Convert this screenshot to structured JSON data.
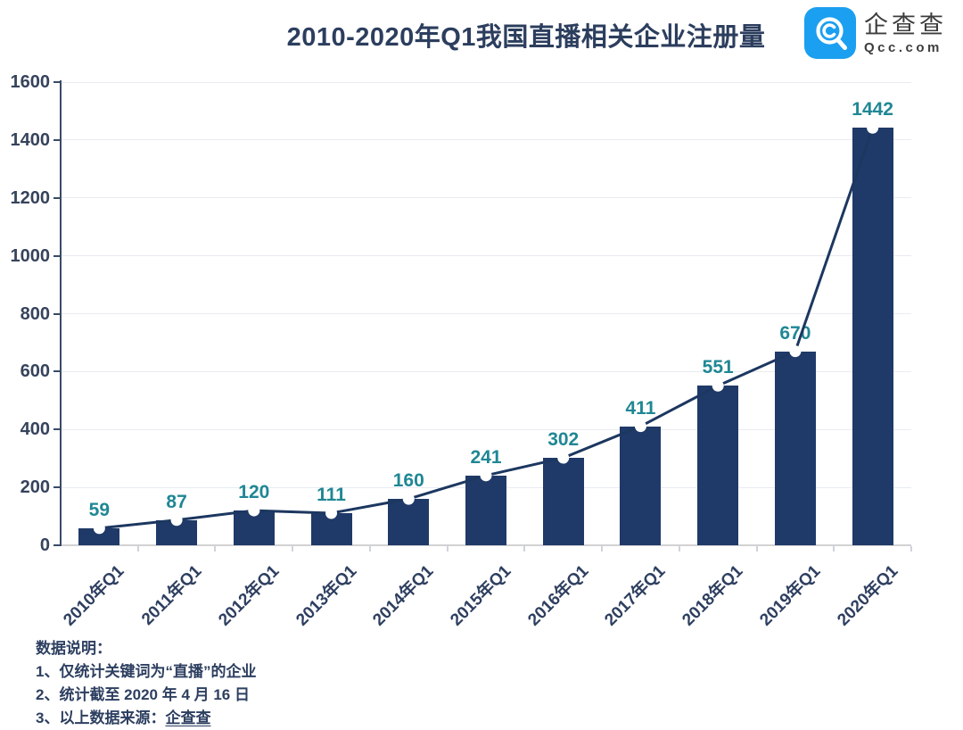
{
  "header": {
    "title": "2010-2020年Q1我国直播相关企业注册量",
    "logo": {
      "name": "企查查",
      "domain": "Qcc.com",
      "brand_color": "#1b9ff0"
    }
  },
  "chart_data": {
    "type": "bar",
    "subtype": "bar-with-line-overlay",
    "title": "2010-2020年Q1我国直播相关企业注册量",
    "categories": [
      "2010年Q1",
      "2011年Q1",
      "2012年Q1",
      "2013年Q1",
      "2014年Q1",
      "2015年Q1",
      "2016年Q1",
      "2017年Q1",
      "2018年Q1",
      "2019年Q1",
      "2020年Q1"
    ],
    "values": [
      59,
      87,
      120,
      111,
      160,
      241,
      302,
      411,
      551,
      670,
      1442
    ],
    "xlabel": "",
    "ylabel": "",
    "ylim": [
      0,
      1600
    ],
    "ytick_step": 200,
    "grid": true,
    "legend": "none",
    "bar_color": "#1f3a68",
    "line_color": "#1c3760",
    "marker": "white-circle",
    "value_label_color": "#1f8794",
    "axis_label_color": "#36435c"
  },
  "notes": {
    "heading": "数据说明：",
    "items": [
      "1、仅统计关键词为“直播”的企业",
      "2、统计截至 2020 年 4 月 16 日"
    ],
    "item3_prefix": "3、以上数据来源：",
    "item3_link": "企查查"
  }
}
